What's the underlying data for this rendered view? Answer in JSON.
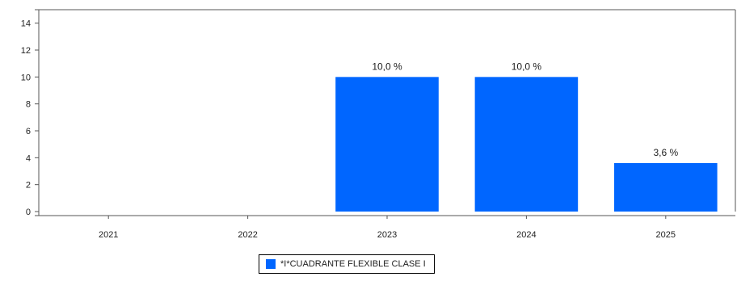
{
  "chart_data": {
    "type": "bar",
    "categories": [
      "2021",
      "2022",
      "2023",
      "2024",
      "2025"
    ],
    "series": [
      {
        "name": "*I*CUADRANTE FLEXIBLE CLASE I",
        "values": [
          null,
          null,
          10.0,
          10.0,
          3.6
        ],
        "labels": [
          "",
          "",
          "10,0 %",
          "10,0 %",
          "3,6 %"
        ],
        "color": "#0066ff"
      }
    ],
    "yticks": [
      "0",
      "2",
      "4",
      "6",
      "8",
      "10",
      "12",
      "14"
    ],
    "ylim": [
      0,
      15
    ],
    "grid": false,
    "legend_position": "bottom-center"
  }
}
